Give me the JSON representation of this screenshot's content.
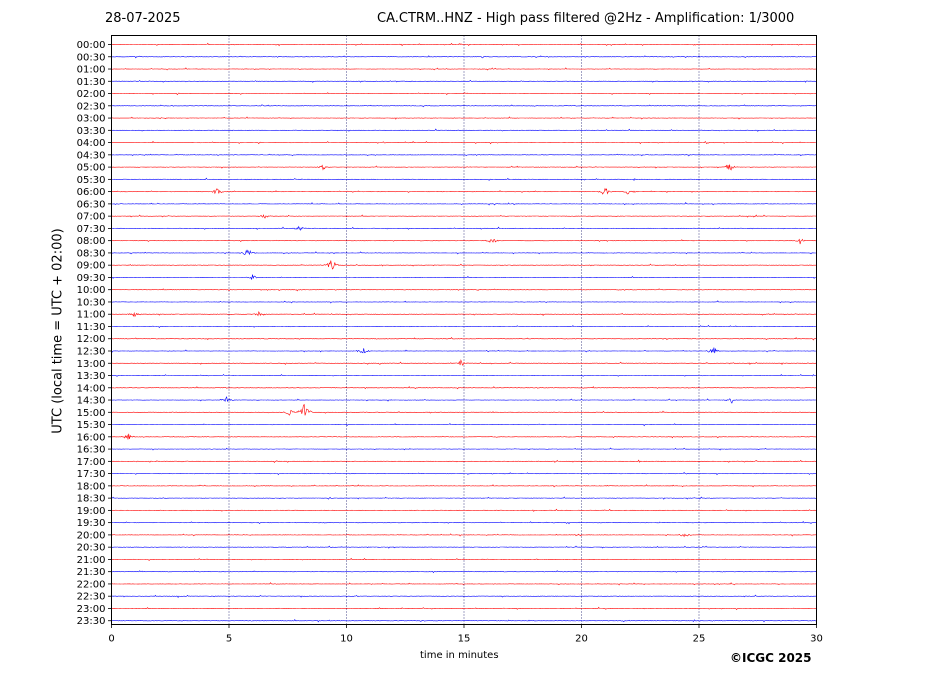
{
  "header": {
    "date": "28-07-2025",
    "title": "CA.CTRM..HNZ - High pass filtered @2Hz - Amplification: 1/3000"
  },
  "footer": {
    "copyright": "©ICGC 2025"
  },
  "chart_data": {
    "type": "line",
    "title": "CA.CTRM..HNZ - High pass filtered @2Hz - Amplification: 1/3000",
    "xlabel": "time in minutes",
    "ylabel": "UTC (local time = UTC + 02:00)",
    "xlim": [
      0,
      30
    ],
    "x_ticks": [
      "0",
      "5",
      "10",
      "15",
      "20",
      "25",
      "30"
    ],
    "y_ticks": [
      "00:00",
      "00:30",
      "01:00",
      "01:30",
      "02:00",
      "02:30",
      "03:00",
      "03:30",
      "04:00",
      "04:30",
      "05:00",
      "05:30",
      "06:00",
      "06:30",
      "07:00",
      "07:30",
      "08:00",
      "08:30",
      "09:00",
      "09:30",
      "10:00",
      "10:30",
      "11:00",
      "11:30",
      "12:00",
      "12:30",
      "13:00",
      "13:30",
      "14:00",
      "14:30",
      "15:00",
      "15:30",
      "16:00",
      "16:30",
      "17:00",
      "17:30",
      "18:00",
      "18:30",
      "19:00",
      "19:30",
      "20:00",
      "20:30",
      "21:00",
      "21:30",
      "22:00",
      "22:30",
      "23:00",
      "23:30"
    ],
    "trace_colors": [
      "#ff0000",
      "#0000ff"
    ],
    "grid": "vertical dotted lines at 5-minute intervals",
    "events": [
      {
        "row": "05:00",
        "minute": 26.3,
        "amp": 0.5
      },
      {
        "row": "05:00",
        "minute": 9.0,
        "amp": 0.3
      },
      {
        "row": "06:00",
        "minute": 4.5,
        "amp": 0.4
      },
      {
        "row": "06:00",
        "minute": 21.0,
        "amp": 0.6
      },
      {
        "row": "06:00",
        "minute": 22.0,
        "amp": 0.4
      },
      {
        "row": "07:00",
        "minute": 6.5,
        "amp": 0.3
      },
      {
        "row": "07:30",
        "minute": 8.0,
        "amp": 0.3
      },
      {
        "row": "08:00",
        "minute": 16.2,
        "amp": 0.4
      },
      {
        "row": "08:00",
        "minute": 29.3,
        "amp": 0.4
      },
      {
        "row": "08:30",
        "minute": 5.8,
        "amp": 0.5
      },
      {
        "row": "09:00",
        "minute": 9.4,
        "amp": 0.8
      },
      {
        "row": "09:30",
        "minute": 6.0,
        "amp": 0.3
      },
      {
        "row": "11:00",
        "minute": 1.0,
        "amp": 0.4
      },
      {
        "row": "11:00",
        "minute": 6.3,
        "amp": 0.4
      },
      {
        "row": "12:30",
        "minute": 10.7,
        "amp": 0.4
      },
      {
        "row": "12:30",
        "minute": 25.6,
        "amp": 0.5
      },
      {
        "row": "13:00",
        "minute": 14.9,
        "amp": 0.4
      },
      {
        "row": "14:30",
        "minute": 4.9,
        "amp": 0.4
      },
      {
        "row": "14:30",
        "minute": 26.4,
        "amp": 0.3
      },
      {
        "row": "15:00",
        "minute": 7.6,
        "amp": 0.4
      },
      {
        "row": "15:00",
        "minute": 8.2,
        "amp": 1.2
      },
      {
        "row": "16:00",
        "minute": 0.7,
        "amp": 0.4
      },
      {
        "row": "20:00",
        "minute": 24.4,
        "amp": 0.3
      }
    ]
  }
}
